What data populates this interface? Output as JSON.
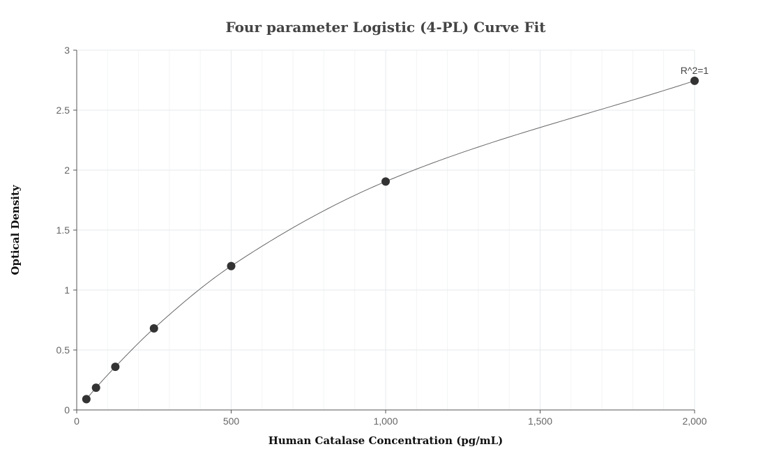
{
  "chart_data": {
    "type": "scatter",
    "title": "Four parameter Logistic (4-PL) Curve Fit",
    "xlabel": "Human Catalase Concentration (pg/mL)",
    "ylabel": "Optical Density",
    "xlim": [
      0,
      2000
    ],
    "ylim": [
      0,
      3
    ],
    "x_ticks": [
      0,
      500,
      1000,
      1500,
      2000
    ],
    "x_tick_labels": [
      "0",
      "500",
      "1,000",
      "1,500",
      "2,000"
    ],
    "y_ticks": [
      0,
      0.5,
      1,
      1.5,
      2,
      2.5,
      3
    ],
    "y_tick_labels": [
      "0",
      "0.5",
      "1",
      "1.5",
      "2",
      "2.5",
      "3"
    ],
    "grid": true,
    "series": [
      {
        "points": [
          {
            "x": 31.25,
            "y": 0.09
          },
          {
            "x": 62.5,
            "y": 0.185
          },
          {
            "x": 125,
            "y": 0.36
          },
          {
            "x": 250,
            "y": 0.68
          },
          {
            "x": 500,
            "y": 1.2
          },
          {
            "x": 1000,
            "y": 1.905
          },
          {
            "x": 2000,
            "y": 2.745
          }
        ],
        "color": "#333333"
      }
    ],
    "fit_curve": {
      "type": "4PL",
      "color": "#666666"
    },
    "annotations": [
      {
        "text": "R^2=1",
        "x": 2000,
        "y": 2.745
      }
    ]
  }
}
